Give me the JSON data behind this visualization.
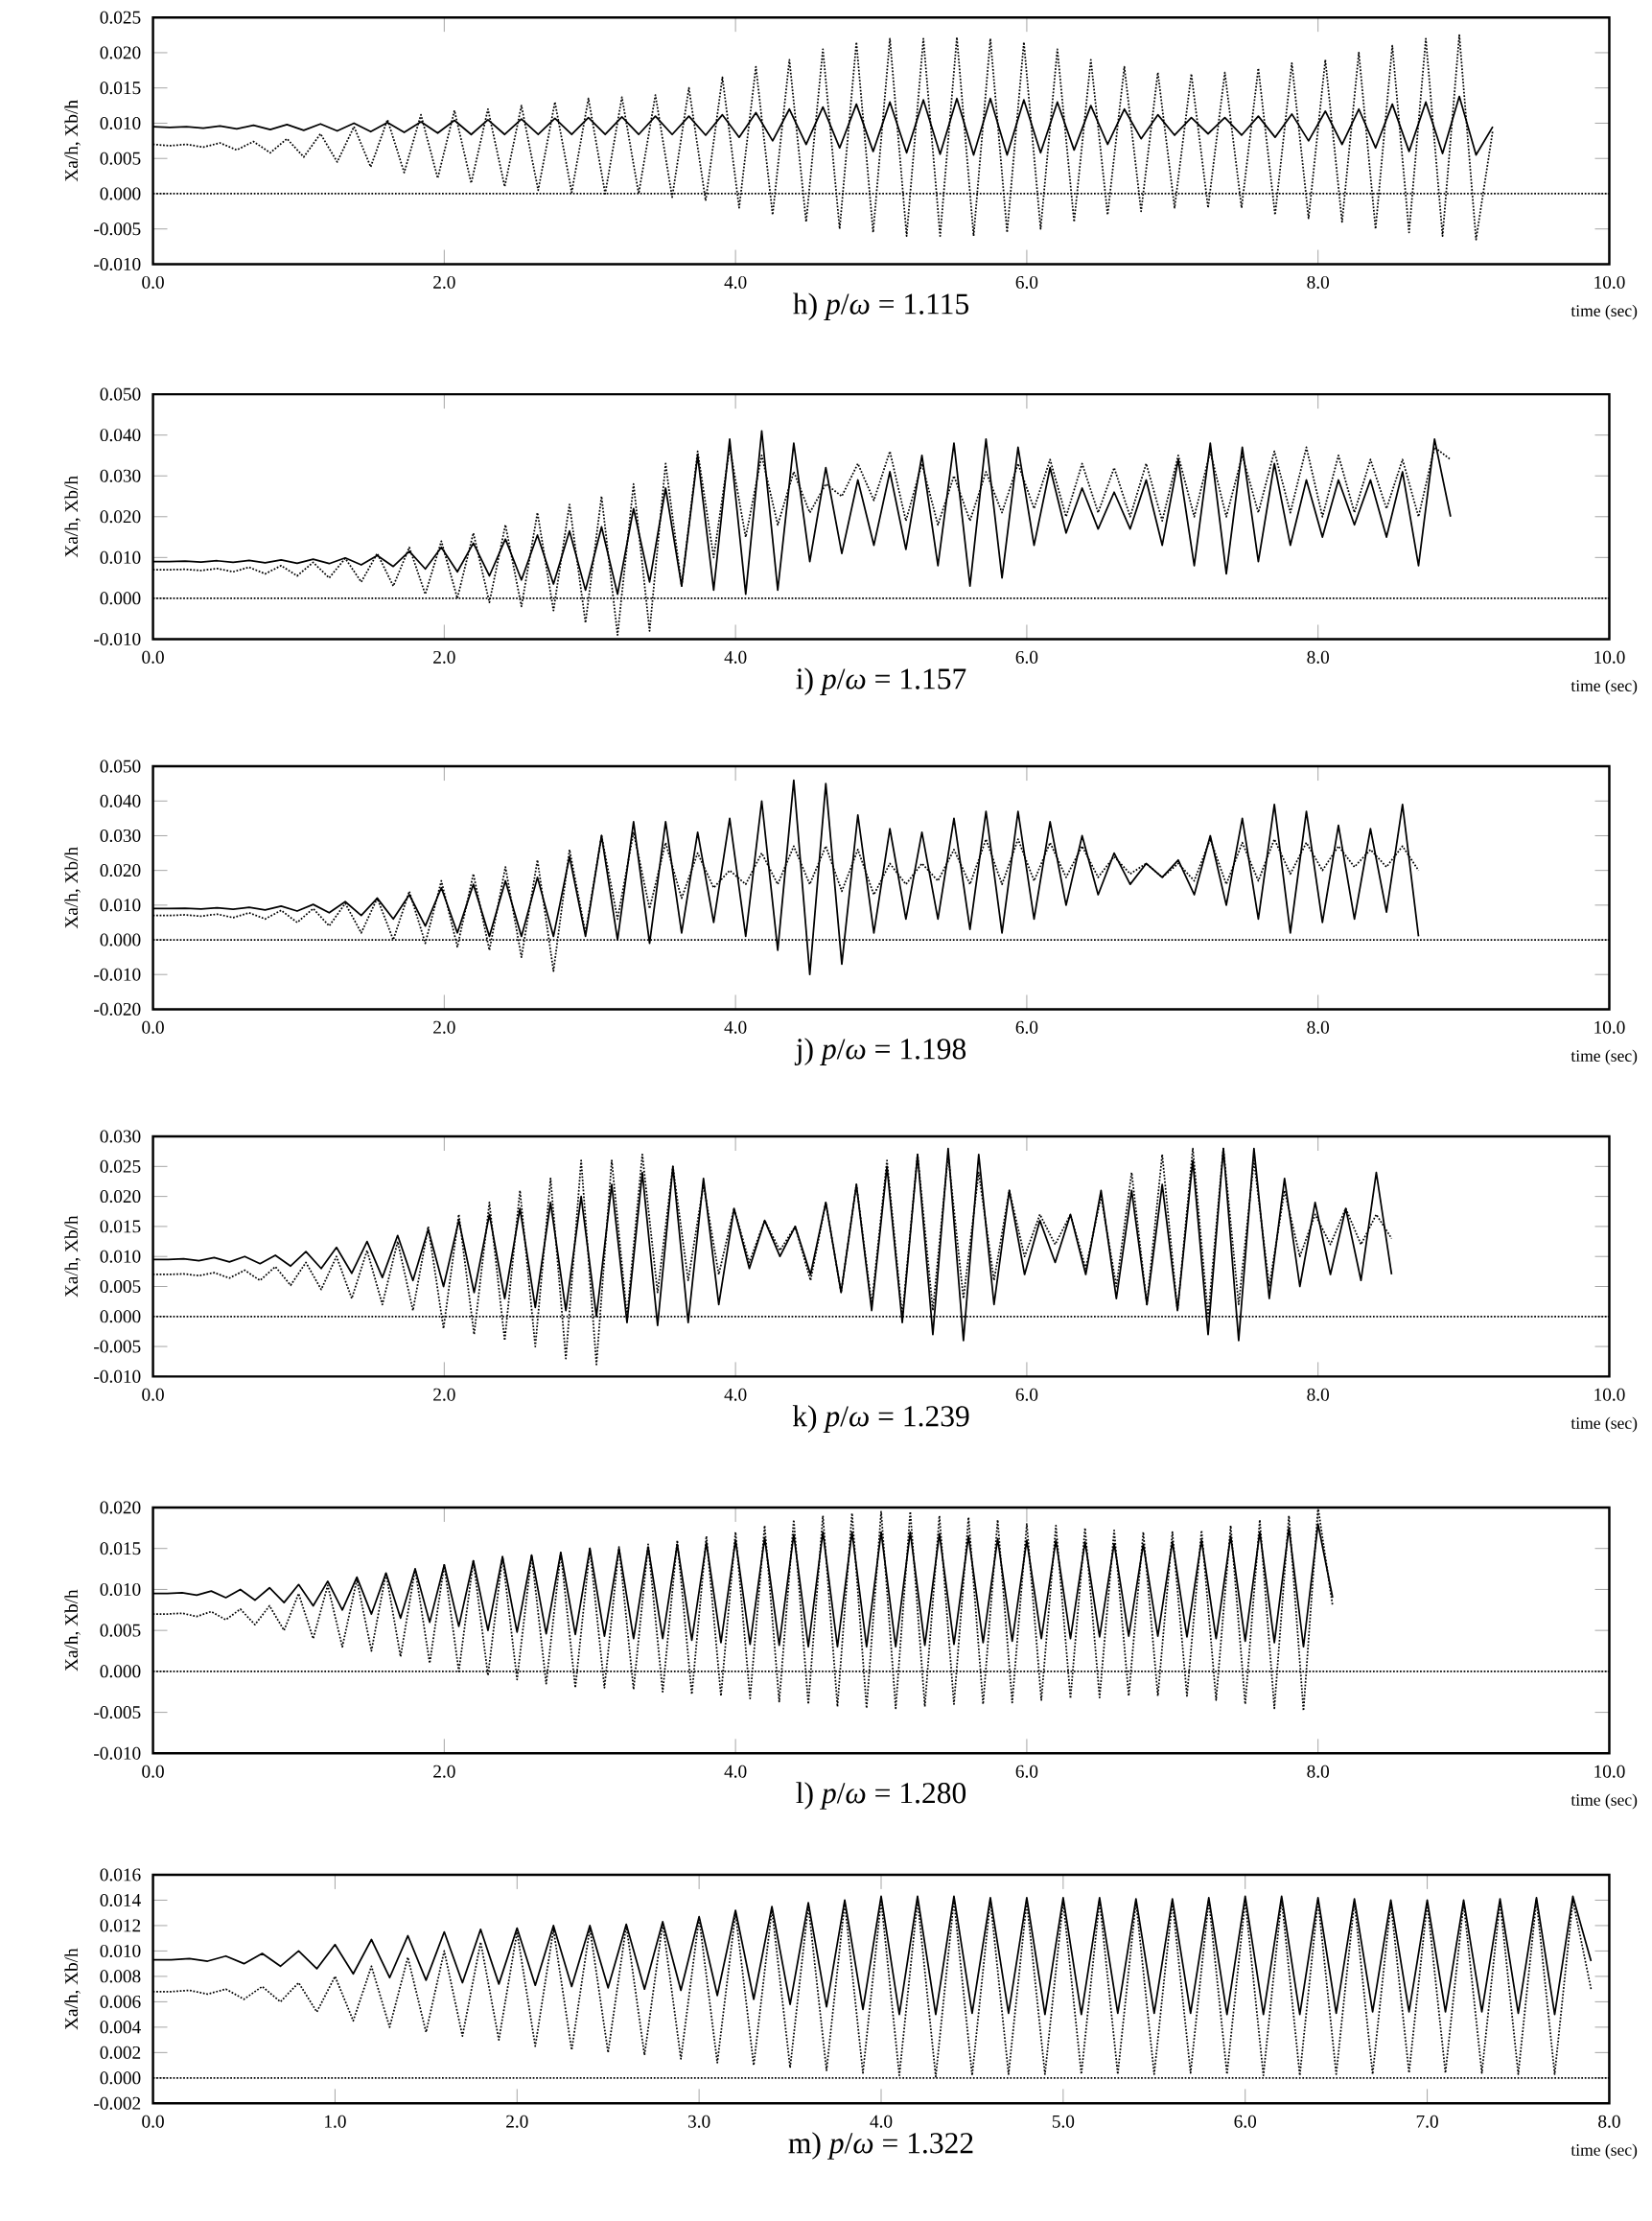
{
  "chart_data": [
    {
      "type": "line",
      "title": "h) *p*/*ω* = 1.115",
      "xlabel": "time (sec)",
      "ylabel": "Xa/h, Xb/h",
      "xlim": [
        0,
        10
      ],
      "ylim": [
        -0.01,
        0.025
      ],
      "xticks": [
        {
          "value": 0,
          "label": "0.0"
        },
        {
          "value": 2,
          "label": "2.0"
        },
        {
          "value": 4,
          "label": "4.0"
        },
        {
          "value": 6,
          "label": "6.0"
        },
        {
          "value": 8,
          "label": "8.0"
        },
        {
          "value": 10,
          "label": "10.0"
        }
      ],
      "yticks": [
        {
          "value": -0.01,
          "label": "-0.010"
        },
        {
          "value": -0.005,
          "label": "-0.005"
        },
        {
          "value": 0,
          "label": "0.000"
        },
        {
          "value": 0.005,
          "label": "0.005"
        },
        {
          "value": 0.01,
          "label": "0.010"
        },
        {
          "value": 0.015,
          "label": "0.015"
        },
        {
          "value": 0.02,
          "label": "0.020"
        },
        {
          "value": 0.025,
          "label": "0.025"
        }
      ],
      "ref_lines": [
        {
          "axis": "y",
          "value": 0,
          "line_style": "dotted"
        }
      ],
      "x": [
        0,
        0.115,
        0.23,
        0.345,
        0.46,
        0.575,
        0.69,
        0.805,
        0.92,
        1.035,
        1.15,
        1.265,
        1.38,
        1.495,
        1.61,
        1.725,
        1.84,
        1.955,
        2.07,
        2.185,
        2.3,
        2.415,
        2.53,
        2.645,
        2.76,
        2.875,
        2.99,
        3.105,
        3.22,
        3.335,
        3.45,
        3.565,
        3.68,
        3.795,
        3.91,
        4.025,
        4.14,
        4.255,
        4.37,
        4.485,
        4.6,
        4.715,
        4.83,
        4.945,
        5.06,
        5.175,
        5.29,
        5.405,
        5.52,
        5.635,
        5.75,
        5.865,
        5.98,
        6.095,
        6.21,
        6.325,
        6.44,
        6.555,
        6.67,
        6.785,
        6.9,
        7.015,
        7.13,
        7.245,
        7.36,
        7.475,
        7.59,
        7.705,
        7.82,
        7.935,
        8.05,
        8.165,
        8.28,
        8.395,
        8.51,
        8.625,
        8.74,
        8.855,
        8.97,
        9.085,
        9.2
      ],
      "series": [
        {
          "color": "#000000",
          "line_style": "solid",
          "values": [
            0.0095,
            0.0094,
            0.0095,
            0.0093,
            0.0096,
            0.0092,
            0.0097,
            0.0091,
            0.0098,
            0.009,
            0.0099,
            0.0089,
            0.01,
            0.0088,
            0.0101,
            0.0087,
            0.0102,
            0.0086,
            0.0104,
            0.0084,
            0.0105,
            0.0084,
            0.0106,
            0.0084,
            0.0107,
            0.0084,
            0.0108,
            0.0084,
            0.0109,
            0.0084,
            0.011,
            0.0084,
            0.011,
            0.0083,
            0.0112,
            0.008,
            0.0115,
            0.0075,
            0.012,
            0.007,
            0.0123,
            0.0065,
            0.0127,
            0.006,
            0.013,
            0.0058,
            0.0133,
            0.0056,
            0.0135,
            0.0055,
            0.0135,
            0.0055,
            0.0133,
            0.0058,
            0.013,
            0.0062,
            0.0125,
            0.007,
            0.012,
            0.0078,
            0.0112,
            0.0083,
            0.0108,
            0.0085,
            0.0108,
            0.0083,
            0.011,
            0.008,
            0.0113,
            0.0075,
            0.0117,
            0.007,
            0.012,
            0.0065,
            0.0127,
            0.006,
            0.013,
            0.0057,
            0.0138,
            0.0055,
            0.0095
          ]
        },
        {
          "color": "#000000",
          "line_style": "dotted",
          "values": [
            0.007,
            0.0068,
            0.007,
            0.0066,
            0.0072,
            0.0062,
            0.0074,
            0.0058,
            0.0078,
            0.0052,
            0.0085,
            0.0045,
            0.0095,
            0.0038,
            0.0105,
            0.003,
            0.0112,
            0.0022,
            0.0118,
            0.0015,
            0.012,
            0.001,
            0.0125,
            0.0005,
            0.013,
            0.0002,
            0.0135,
            0.0,
            0.0137,
            0.0,
            0.014,
            -0.0005,
            0.015,
            -0.001,
            0.0165,
            -0.002,
            0.018,
            -0.003,
            0.019,
            -0.004,
            0.0205,
            -0.005,
            0.0215,
            -0.0055,
            0.022,
            -0.006,
            0.022,
            -0.006,
            0.0222,
            -0.006,
            0.022,
            -0.0055,
            0.0215,
            -0.005,
            0.0205,
            -0.004,
            0.019,
            -0.003,
            0.018,
            -0.0025,
            0.0172,
            -0.002,
            0.017,
            -0.002,
            0.0172,
            -0.002,
            0.0178,
            -0.003,
            0.0185,
            -0.0035,
            0.019,
            -0.004,
            0.02,
            -0.005,
            0.021,
            -0.0055,
            0.022,
            -0.006,
            0.0225,
            -0.0065,
            0.009
          ]
        }
      ]
    },
    {
      "type": "line",
      "title": "i) *p*/*ω* = 1.157",
      "xlabel": "time (sec)",
      "ylabel": "Xa/h, Xb/h",
      "xlim": [
        0,
        10
      ],
      "ylim": [
        -0.01,
        0.05
      ],
      "xticks": [
        {
          "value": 0,
          "label": "0.0"
        },
        {
          "value": 2,
          "label": "2.0"
        },
        {
          "value": 4,
          "label": "4.0"
        },
        {
          "value": 6,
          "label": "6.0"
        },
        {
          "value": 8,
          "label": "8.0"
        },
        {
          "value": 10,
          "label": "10.0"
        }
      ],
      "yticks": [
        {
          "value": -0.01,
          "label": "-0.010"
        },
        {
          "value": 0,
          "label": "0.000"
        },
        {
          "value": 0.01,
          "label": "0.010"
        },
        {
          "value": 0.02,
          "label": "0.020"
        },
        {
          "value": 0.03,
          "label": "0.030"
        },
        {
          "value": 0.04,
          "label": "0.040"
        },
        {
          "value": 0.05,
          "label": "0.050"
        }
      ],
      "ref_lines": [
        {
          "axis": "y",
          "value": 0,
          "line_style": "dotted"
        }
      ],
      "x": [
        0,
        0.11,
        0.22,
        0.33,
        0.44,
        0.55,
        0.66,
        0.77,
        0.88,
        0.99,
        1.1,
        1.21,
        1.32,
        1.43,
        1.54,
        1.65,
        1.76,
        1.87,
        1.98,
        2.09,
        2.2,
        2.31,
        2.42,
        2.53,
        2.64,
        2.75,
        2.86,
        2.97,
        3.08,
        3.19,
        3.3,
        3.41,
        3.52,
        3.63,
        3.74,
        3.85,
        3.96,
        4.07,
        4.18,
        4.29,
        4.4,
        4.51,
        4.62,
        4.73,
        4.84,
        4.95,
        5.06,
        5.17,
        5.28,
        5.39,
        5.5,
        5.61,
        5.72,
        5.83,
        5.94,
        6.05,
        6.16,
        6.27,
        6.38,
        6.49,
        6.6,
        6.71,
        6.82,
        6.93,
        7.04,
        7.15,
        7.26,
        7.37,
        7.48,
        7.59,
        7.7,
        7.81,
        7.92,
        8.03,
        8.14,
        8.25,
        8.36,
        8.47,
        8.58,
        8.69,
        8.8,
        8.91
      ],
      "series": [
        {
          "color": "#000000",
          "line_style": "solid",
          "values": [
            0.009,
            0.009,
            0.0091,
            0.0089,
            0.0092,
            0.0088,
            0.0093,
            0.0087,
            0.0094,
            0.0086,
            0.0096,
            0.0085,
            0.0099,
            0.0082,
            0.0105,
            0.0078,
            0.0115,
            0.0072,
            0.0125,
            0.0065,
            0.0135,
            0.0055,
            0.0145,
            0.0045,
            0.0155,
            0.0035,
            0.0165,
            0.002,
            0.0175,
            0.001,
            0.022,
            0.004,
            0.027,
            0.003,
            0.035,
            0.002,
            0.039,
            0.001,
            0.041,
            0.002,
            0.038,
            0.009,
            0.032,
            0.011,
            0.029,
            0.013,
            0.031,
            0.012,
            0.035,
            0.008,
            0.038,
            0.003,
            0.039,
            0.005,
            0.037,
            0.013,
            0.032,
            0.016,
            0.027,
            0.017,
            0.026,
            0.017,
            0.029,
            0.013,
            0.034,
            0.008,
            0.038,
            0.006,
            0.037,
            0.009,
            0.033,
            0.013,
            0.029,
            0.015,
            0.029,
            0.018,
            0.029,
            0.015,
            0.031,
            0.008,
            0.039,
            0.02
          ]
        },
        {
          "color": "#000000",
          "line_style": "dotted",
          "values": [
            0.007,
            0.007,
            0.0071,
            0.0068,
            0.0073,
            0.0065,
            0.0076,
            0.006,
            0.008,
            0.0055,
            0.0088,
            0.005,
            0.0098,
            0.004,
            0.011,
            0.003,
            0.0125,
            0.001,
            0.014,
            0.0,
            0.016,
            -0.001,
            0.018,
            -0.002,
            0.021,
            -0.003,
            0.023,
            -0.006,
            0.025,
            -0.009,
            0.028,
            -0.008,
            0.033,
            0.003,
            0.036,
            0.01,
            0.037,
            0.015,
            0.035,
            0.018,
            0.031,
            0.021,
            0.028,
            0.025,
            0.033,
            0.024,
            0.036,
            0.019,
            0.033,
            0.018,
            0.03,
            0.019,
            0.031,
            0.021,
            0.033,
            0.022,
            0.034,
            0.02,
            0.033,
            0.021,
            0.032,
            0.02,
            0.033,
            0.019,
            0.035,
            0.02,
            0.036,
            0.02,
            0.035,
            0.021,
            0.036,
            0.021,
            0.037,
            0.02,
            0.035,
            0.021,
            0.034,
            0.022,
            0.034,
            0.02,
            0.037,
            0.034
          ]
        }
      ]
    },
    {
      "type": "line",
      "title": "j) *p*/*ω* = 1.198",
      "xlabel": "time (sec)",
      "ylabel": "Xa/h, Xb/h",
      "xlim": [
        0,
        10
      ],
      "ylim": [
        -0.02,
        0.05
      ],
      "xticks": [
        {
          "value": 0,
          "label": "0.0"
        },
        {
          "value": 2,
          "label": "2.0"
        },
        {
          "value": 4,
          "label": "4.0"
        },
        {
          "value": 6,
          "label": "6.0"
        },
        {
          "value": 8,
          "label": "8.0"
        },
        {
          "value": 10,
          "label": "10.0"
        }
      ],
      "yticks": [
        {
          "value": -0.02,
          "label": "-0.020"
        },
        {
          "value": -0.01,
          "label": "-0.010"
        },
        {
          "value": 0,
          "label": "0.000"
        },
        {
          "value": 0.01,
          "label": "0.010"
        },
        {
          "value": 0.02,
          "label": "0.020"
        },
        {
          "value": 0.03,
          "label": "0.030"
        },
        {
          "value": 0.04,
          "label": "0.040"
        },
        {
          "value": 0.05,
          "label": "0.050"
        }
      ],
      "ref_lines": [
        {
          "axis": "y",
          "value": 0,
          "line_style": "dotted"
        }
      ],
      "x": [
        0,
        0.11,
        0.22,
        0.33,
        0.44,
        0.55,
        0.66,
        0.77,
        0.88,
        0.99,
        1.1,
        1.21,
        1.32,
        1.43,
        1.54,
        1.65,
        1.76,
        1.87,
        1.98,
        2.09,
        2.2,
        2.31,
        2.42,
        2.53,
        2.64,
        2.75,
        2.86,
        2.97,
        3.08,
        3.19,
        3.3,
        3.41,
        3.52,
        3.63,
        3.74,
        3.85,
        3.96,
        4.07,
        4.18,
        4.29,
        4.4,
        4.51,
        4.62,
        4.73,
        4.84,
        4.95,
        5.06,
        5.17,
        5.28,
        5.39,
        5.5,
        5.61,
        5.72,
        5.83,
        5.94,
        6.05,
        6.16,
        6.27,
        6.38,
        6.49,
        6.6,
        6.71,
        6.82,
        6.93,
        7.04,
        7.15,
        7.26,
        7.37,
        7.48,
        7.59,
        7.7,
        7.81,
        7.92,
        8.03,
        8.14,
        8.25,
        8.36,
        8.47,
        8.58,
        8.69
      ],
      "series": [
        {
          "color": "#000000",
          "line_style": "solid",
          "values": [
            0.009,
            0.009,
            0.0091,
            0.0089,
            0.0092,
            0.0088,
            0.0094,
            0.0086,
            0.0097,
            0.0083,
            0.0102,
            0.0078,
            0.011,
            0.007,
            0.012,
            0.006,
            0.013,
            0.004,
            0.015,
            0.002,
            0.016,
            0.001,
            0.017,
            0.001,
            0.018,
            0.001,
            0.024,
            0.001,
            0.03,
            0.0,
            0.034,
            -0.001,
            0.034,
            0.002,
            0.031,
            0.005,
            0.035,
            0.001,
            0.04,
            -0.003,
            0.046,
            -0.01,
            0.045,
            -0.007,
            0.036,
            0.002,
            0.032,
            0.006,
            0.031,
            0.006,
            0.035,
            0.003,
            0.037,
            0.002,
            0.037,
            0.006,
            0.034,
            0.01,
            0.03,
            0.013,
            0.025,
            0.016,
            0.022,
            0.018,
            0.023,
            0.013,
            0.03,
            0.01,
            0.035,
            0.006,
            0.039,
            0.002,
            0.037,
            0.005,
            0.033,
            0.006,
            0.032,
            0.008,
            0.039,
            0.001
          ]
        },
        {
          "color": "#000000",
          "line_style": "dotted",
          "values": [
            0.007,
            0.007,
            0.0072,
            0.0068,
            0.0074,
            0.0064,
            0.0078,
            0.006,
            0.0085,
            0.005,
            0.009,
            0.004,
            0.0105,
            0.002,
            0.012,
            0.0,
            0.014,
            -0.001,
            0.017,
            -0.002,
            0.019,
            -0.003,
            0.021,
            -0.005,
            0.023,
            -0.009,
            0.026,
            0.002,
            0.03,
            0.006,
            0.031,
            0.009,
            0.028,
            0.012,
            0.025,
            0.015,
            0.02,
            0.016,
            0.025,
            0.016,
            0.027,
            0.016,
            0.027,
            0.014,
            0.026,
            0.013,
            0.022,
            0.016,
            0.022,
            0.017,
            0.026,
            0.016,
            0.029,
            0.016,
            0.029,
            0.017,
            0.028,
            0.018,
            0.027,
            0.018,
            0.024,
            0.019,
            0.022,
            0.018,
            0.022,
            0.017,
            0.029,
            0.016,
            0.028,
            0.017,
            0.029,
            0.019,
            0.028,
            0.02,
            0.027,
            0.021,
            0.026,
            0.021,
            0.027,
            0.02
          ]
        }
      ]
    },
    {
      "type": "line",
      "title": "k) *p*/*ω* = 1.239",
      "xlabel": "time (sec)",
      "ylabel": "Xa/h, Xb/h",
      "xlim": [
        0,
        10
      ],
      "ylim": [
        -0.01,
        0.03
      ],
      "xticks": [
        {
          "value": 0,
          "label": "0.0"
        },
        {
          "value": 2,
          "label": "2.0"
        },
        {
          "value": 4,
          "label": "4.0"
        },
        {
          "value": 6,
          "label": "6.0"
        },
        {
          "value": 8,
          "label": "8.0"
        },
        {
          "value": 10,
          "label": "10.0"
        }
      ],
      "yticks": [
        {
          "value": -0.01,
          "label": "-0.010"
        },
        {
          "value": -0.005,
          "label": "-0.005"
        },
        {
          "value": 0,
          "label": "0.000"
        },
        {
          "value": 0.005,
          "label": "0.005"
        },
        {
          "value": 0.01,
          "label": "0.010"
        },
        {
          "value": 0.015,
          "label": "0.015"
        },
        {
          "value": 0.02,
          "label": "0.020"
        },
        {
          "value": 0.025,
          "label": "0.025"
        },
        {
          "value": 0.03,
          "label": "0.030"
        }
      ],
      "ref_lines": [
        {
          "axis": "y",
          "value": 0,
          "line_style": "dotted"
        }
      ],
      "x": [
        0,
        0.105,
        0.21,
        0.315,
        0.42,
        0.525,
        0.63,
        0.735,
        0.84,
        0.945,
        1.05,
        1.155,
        1.26,
        1.365,
        1.47,
        1.575,
        1.68,
        1.785,
        1.89,
        1.995,
        2.1,
        2.205,
        2.31,
        2.415,
        2.52,
        2.625,
        2.73,
        2.835,
        2.94,
        3.045,
        3.15,
        3.255,
        3.36,
        3.465,
        3.57,
        3.675,
        3.78,
        3.885,
        3.99,
        4.095,
        4.2,
        4.305,
        4.41,
        4.515,
        4.62,
        4.725,
        4.83,
        4.935,
        5.04,
        5.145,
        5.25,
        5.355,
        5.46,
        5.565,
        5.67,
        5.775,
        5.88,
        5.985,
        6.09,
        6.195,
        6.3,
        6.405,
        6.51,
        6.615,
        6.72,
        6.825,
        6.93,
        7.035,
        7.14,
        7.245,
        7.35,
        7.455,
        7.56,
        7.665,
        7.77,
        7.875,
        7.98,
        8.085,
        8.19,
        8.295,
        8.4,
        8.505
      ],
      "series": [
        {
          "color": "#000000",
          "line_style": "solid",
          "values": [
            0.0095,
            0.0095,
            0.0096,
            0.0093,
            0.0098,
            0.0091,
            0.01,
            0.0088,
            0.0102,
            0.0084,
            0.0108,
            0.008,
            0.0115,
            0.0072,
            0.0125,
            0.0065,
            0.0135,
            0.006,
            0.0145,
            0.005,
            0.016,
            0.004,
            0.017,
            0.003,
            0.018,
            0.0015,
            0.019,
            0.001,
            0.02,
            0.0,
            0.022,
            -0.001,
            0.024,
            -0.0015,
            0.025,
            -0.001,
            0.023,
            0.002,
            0.018,
            0.008,
            0.016,
            0.01,
            0.015,
            0.007,
            0.019,
            0.004,
            0.022,
            0.001,
            0.025,
            -0.001,
            0.027,
            -0.003,
            0.028,
            -0.004,
            0.027,
            0.002,
            0.021,
            0.007,
            0.016,
            0.009,
            0.017,
            0.007,
            0.021,
            0.003,
            0.021,
            0.002,
            0.022,
            0.001,
            0.026,
            -0.003,
            0.028,
            -0.004,
            0.028,
            0.003,
            0.023,
            0.005,
            0.019,
            0.007,
            0.018,
            0.006,
            0.024,
            0.007
          ]
        },
        {
          "color": "#000000",
          "line_style": "dotted",
          "values": [
            0.007,
            0.007,
            0.0071,
            0.0068,
            0.0073,
            0.0064,
            0.0077,
            0.006,
            0.0083,
            0.0052,
            0.009,
            0.0045,
            0.01,
            0.003,
            0.011,
            0.002,
            0.0125,
            0.001,
            0.015,
            -0.002,
            0.017,
            -0.003,
            0.019,
            -0.004,
            0.021,
            -0.005,
            0.023,
            -0.007,
            0.026,
            -0.008,
            0.026,
            0.0,
            0.027,
            0.004,
            0.025,
            0.006,
            0.022,
            0.007,
            0.018,
            0.009,
            0.016,
            0.011,
            0.015,
            0.006,
            0.019,
            0.004,
            0.022,
            0.002,
            0.026,
            0.0,
            0.027,
            0.001,
            0.027,
            0.003,
            0.024,
            0.006,
            0.021,
            0.01,
            0.017,
            0.012,
            0.017,
            0.008,
            0.02,
            0.005,
            0.024,
            0.002,
            0.027,
            0.001,
            0.028,
            0.0,
            0.028,
            0.002,
            0.026,
            0.005,
            0.021,
            0.01,
            0.017,
            0.012,
            0.018,
            0.012,
            0.017,
            0.013
          ]
        }
      ]
    },
    {
      "type": "line",
      "title": "l) *p*/*ω* = 1.280",
      "xlabel": "time (sec)",
      "ylabel": "Xa/h, Xb/h",
      "xlim": [
        0,
        10
      ],
      "ylim": [
        -0.01,
        0.02
      ],
      "xticks": [
        {
          "value": 0,
          "label": "0.0"
        },
        {
          "value": 2,
          "label": "2.0"
        },
        {
          "value": 4,
          "label": "4.0"
        },
        {
          "value": 6,
          "label": "6.0"
        },
        {
          "value": 8,
          "label": "8.0"
        },
        {
          "value": 10,
          "label": "10.0"
        }
      ],
      "yticks": [
        {
          "value": -0.01,
          "label": "-0.010"
        },
        {
          "value": -0.005,
          "label": "-0.005"
        },
        {
          "value": 0,
          "label": "0.000"
        },
        {
          "value": 0.005,
          "label": "0.005"
        },
        {
          "value": 0.01,
          "label": "0.010"
        },
        {
          "value": 0.015,
          "label": "0.015"
        },
        {
          "value": 0.02,
          "label": "0.020"
        }
      ],
      "ref_lines": [
        {
          "axis": "y",
          "value": 0,
          "line_style": "dotted"
        }
      ],
      "x": [
        0,
        0.1,
        0.2,
        0.3,
        0.4,
        0.5,
        0.6,
        0.7,
        0.8,
        0.9,
        1.0,
        1.1,
        1.2,
        1.3,
        1.4,
        1.5,
        1.6,
        1.7,
        1.8,
        1.9,
        2.0,
        2.1,
        2.2,
        2.3,
        2.4,
        2.5,
        2.6,
        2.7,
        2.8,
        2.9,
        3.0,
        3.1,
        3.2,
        3.3,
        3.4,
        3.5,
        3.6,
        3.7,
        3.8,
        3.9,
        4.0,
        4.1,
        4.2,
        4.3,
        4.4,
        4.5,
        4.6,
        4.7,
        4.8,
        4.9,
        5.0,
        5.1,
        5.2,
        5.3,
        5.4,
        5.5,
        5.6,
        5.7,
        5.8,
        5.9,
        6.0,
        6.1,
        6.2,
        6.3,
        6.4,
        6.5,
        6.6,
        6.7,
        6.8,
        6.9,
        7.0,
        7.1,
        7.2,
        7.3,
        7.4,
        7.5,
        7.6,
        7.7,
        7.8,
        7.9,
        8.0,
        8.1
      ],
      "series": [
        {
          "color": "#000000",
          "line_style": "solid",
          "values": [
            0.0095,
            0.0095,
            0.0096,
            0.0093,
            0.0098,
            0.009,
            0.01,
            0.0087,
            0.0102,
            0.0084,
            0.0106,
            0.008,
            0.011,
            0.0075,
            0.0115,
            0.007,
            0.012,
            0.0065,
            0.0125,
            0.006,
            0.013,
            0.0055,
            0.0135,
            0.005,
            0.014,
            0.0048,
            0.0142,
            0.0046,
            0.0145,
            0.0045,
            0.015,
            0.0043,
            0.015,
            0.004,
            0.0152,
            0.004,
            0.0155,
            0.0038,
            0.0157,
            0.0035,
            0.016,
            0.0033,
            0.0163,
            0.0032,
            0.0167,
            0.003,
            0.017,
            0.003,
            0.017,
            0.003,
            0.017,
            0.003,
            0.017,
            0.0032,
            0.0168,
            0.0033,
            0.0165,
            0.0035,
            0.0162,
            0.0037,
            0.016,
            0.004,
            0.016,
            0.004,
            0.0158,
            0.0042,
            0.0156,
            0.0043,
            0.0155,
            0.0043,
            0.0158,
            0.0042,
            0.016,
            0.004,
            0.0165,
            0.0037,
            0.017,
            0.0035,
            0.0175,
            0.003,
            0.018,
            0.009
          ]
        },
        {
          "color": "#000000",
          "line_style": "dotted",
          "values": [
            0.007,
            0.007,
            0.0071,
            0.0067,
            0.0073,
            0.0063,
            0.0076,
            0.0057,
            0.008,
            0.005,
            0.0095,
            0.004,
            0.0105,
            0.003,
            0.0112,
            0.0025,
            0.012,
            0.0018,
            0.0125,
            0.001,
            0.013,
            0.0,
            0.0135,
            -0.0005,
            0.014,
            -0.001,
            0.0142,
            -0.0015,
            0.0145,
            -0.002,
            0.015,
            -0.002,
            0.0152,
            -0.0022,
            0.0155,
            -0.0025,
            0.016,
            -0.0028,
            0.0165,
            -0.003,
            0.017,
            -0.0033,
            0.0178,
            -0.0037,
            0.0185,
            -0.004,
            0.019,
            -0.0043,
            0.0193,
            -0.0045,
            0.0195,
            -0.0045,
            0.0195,
            -0.0043,
            0.019,
            -0.004,
            0.0188,
            -0.004,
            0.0185,
            -0.0038,
            0.018,
            -0.0035,
            0.0178,
            -0.0033,
            0.0175,
            -0.0032,
            0.0172,
            -0.003,
            0.017,
            -0.003,
            0.017,
            -0.003,
            0.0172,
            -0.0035,
            0.0178,
            -0.004,
            0.0185,
            -0.0045,
            0.019,
            -0.0048,
            0.02,
            0.008
          ]
        }
      ]
    },
    {
      "type": "line",
      "title": "m) *p*/*ω* = 1.322",
      "xlabel": "time (sec)",
      "ylabel": "Xa/h, Xb/h",
      "xlim": [
        0,
        8
      ],
      "ylim": [
        -0.002,
        0.016
      ],
      "xticks": [
        {
          "value": 0,
          "label": "0.0"
        },
        {
          "value": 1,
          "label": "1.0"
        },
        {
          "value": 2,
          "label": "2.0"
        },
        {
          "value": 3,
          "label": "3.0"
        },
        {
          "value": 4,
          "label": "4.0"
        },
        {
          "value": 5,
          "label": "5.0"
        },
        {
          "value": 6,
          "label": "6.0"
        },
        {
          "value": 7,
          "label": "7.0"
        },
        {
          "value": 8,
          "label": "8.0"
        }
      ],
      "yticks": [
        {
          "value": -0.002,
          "label": "-0.002"
        },
        {
          "value": 0,
          "label": "0.000"
        },
        {
          "value": 0.002,
          "label": "0.002"
        },
        {
          "value": 0.004,
          "label": "0.004"
        },
        {
          "value": 0.006,
          "label": "0.006"
        },
        {
          "value": 0.008,
          "label": "0.008"
        },
        {
          "value": 0.01,
          "label": "0.010"
        },
        {
          "value": 0.012,
          "label": "0.012"
        },
        {
          "value": 0.014,
          "label": "0.014"
        },
        {
          "value": 0.016,
          "label": "0.016"
        }
      ],
      "ref_lines": [
        {
          "axis": "y",
          "value": 0,
          "line_style": "dotted"
        }
      ],
      "x": [
        0,
        0.1,
        0.2,
        0.3,
        0.4,
        0.5,
        0.6,
        0.7,
        0.8,
        0.9,
        1.0,
        1.1,
        1.2,
        1.3,
        1.4,
        1.5,
        1.6,
        1.7,
        1.8,
        1.9,
        2.0,
        2.1,
        2.2,
        2.3,
        2.4,
        2.5,
        2.6,
        2.7,
        2.8,
        2.9,
        3.0,
        3.1,
        3.2,
        3.3,
        3.4,
        3.5,
        3.6,
        3.7,
        3.8,
        3.9,
        4.0,
        4.1,
        4.2,
        4.3,
        4.4,
        4.5,
        4.6,
        4.7,
        4.8,
        4.9,
        5.0,
        5.1,
        5.2,
        5.3,
        5.4,
        5.5,
        5.6,
        5.7,
        5.8,
        5.9,
        6.0,
        6.1,
        6.2,
        6.3,
        6.4,
        6.5,
        6.6,
        6.7,
        6.8,
        6.9,
        7.0,
        7.1,
        7.2,
        7.3,
        7.4,
        7.5,
        7.6,
        7.7,
        7.8,
        7.9
      ],
      "series": [
        {
          "color": "#000000",
          "line_style": "solid",
          "values": [
            0.0093,
            0.0093,
            0.0094,
            0.0092,
            0.0096,
            0.009,
            0.0098,
            0.0088,
            0.01,
            0.0086,
            0.0105,
            0.0082,
            0.0109,
            0.0079,
            0.0112,
            0.0077,
            0.0115,
            0.0075,
            0.0117,
            0.0074,
            0.0118,
            0.0073,
            0.012,
            0.0072,
            0.012,
            0.0071,
            0.0121,
            0.007,
            0.0123,
            0.0069,
            0.0127,
            0.0065,
            0.0132,
            0.0062,
            0.0135,
            0.0058,
            0.0138,
            0.0056,
            0.014,
            0.0054,
            0.0143,
            0.005,
            0.0143,
            0.005,
            0.0143,
            0.0051,
            0.0142,
            0.0051,
            0.0142,
            0.005,
            0.0142,
            0.005,
            0.0142,
            0.0051,
            0.0141,
            0.0051,
            0.0141,
            0.0051,
            0.0142,
            0.005,
            0.0143,
            0.005,
            0.0143,
            0.005,
            0.0142,
            0.0051,
            0.0141,
            0.0052,
            0.014,
            0.0052,
            0.014,
            0.0052,
            0.014,
            0.0052,
            0.0141,
            0.0051,
            0.0142,
            0.005,
            0.0143,
            0.0092
          ]
        },
        {
          "color": "#000000",
          "line_style": "dotted",
          "values": [
            0.0068,
            0.0068,
            0.0069,
            0.0066,
            0.007,
            0.0062,
            0.0072,
            0.006,
            0.0075,
            0.0052,
            0.008,
            0.0045,
            0.0088,
            0.004,
            0.0095,
            0.0036,
            0.01,
            0.0033,
            0.0107,
            0.003,
            0.0115,
            0.0025,
            0.0117,
            0.0022,
            0.0118,
            0.002,
            0.012,
            0.0018,
            0.0122,
            0.0015,
            0.0126,
            0.0012,
            0.013,
            0.001,
            0.0133,
            0.0008,
            0.0136,
            0.0006,
            0.0138,
            0.0004,
            0.014,
            0.0002,
            0.014,
            0.0001,
            0.014,
            0.0002,
            0.014,
            0.0003,
            0.0139,
            0.0003,
            0.0139,
            0.0003,
            0.014,
            0.0003,
            0.0139,
            0.0003,
            0.0139,
            0.0004,
            0.014,
            0.0003,
            0.014,
            0.0002,
            0.0141,
            0.0002,
            0.014,
            0.0003,
            0.0139,
            0.0003,
            0.0138,
            0.0004,
            0.0138,
            0.0004,
            0.0138,
            0.0004,
            0.0139,
            0.0003,
            0.014,
            0.0003,
            0.014,
            0.007
          ]
        }
      ]
    }
  ]
}
